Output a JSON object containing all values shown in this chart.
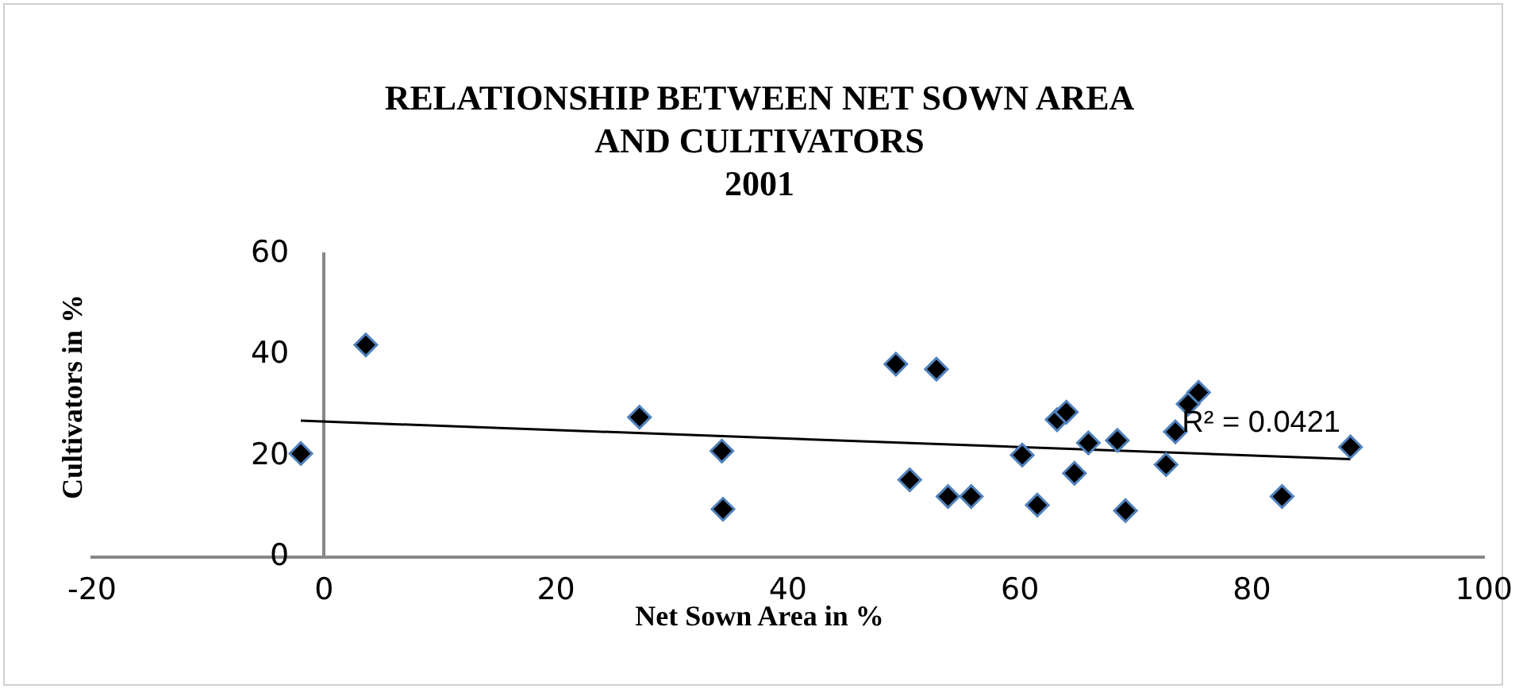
{
  "chart_data": {
    "type": "scatter",
    "title": "RELATIONSHIP BETWEEN NET SOWN AREA\nAND CULTIVATORS\n2001",
    "xlabel": "Net Sown Area in %",
    "ylabel": "Cultivators in %",
    "xlim": [
      -20,
      100
    ],
    "xticks": [
      -20,
      0,
      20,
      40,
      60,
      80,
      100
    ],
    "ylim": [
      0,
      60
    ],
    "yticks": [
      0,
      20,
      40,
      60
    ],
    "grid": false,
    "legend": false,
    "marker": "diamond",
    "series": [
      {
        "color": "#000000",
        "x": [
          -2,
          3.6,
          27.2,
          34.3,
          34.4,
          49.3,
          52.8,
          50.5,
          53.8,
          55.8,
          60.2,
          61.5,
          63.2,
          64.0,
          64.7,
          65.9,
          68.4,
          69.1,
          72.6,
          73.4,
          74.5,
          75.4,
          82.6,
          88.5
        ],
        "values": [
          20.5,
          42,
          27.7,
          21,
          9.5,
          38.2,
          37.2,
          15.3,
          12,
          12,
          20.2,
          10.3,
          27.2,
          28.7,
          16.6,
          22.6,
          23.1,
          9.2,
          18.3,
          24.8,
          30.3,
          32.6,
          12,
          21.8
        ]
      },
      {
        "type": "line",
        "color": "#000000",
        "marker": "none",
        "x": [
          -2,
          88.5
        ],
        "values": [
          27,
          19.4
        ]
      }
    ],
    "annotations": [
      "R² = 0.0421"
    ]
  }
}
